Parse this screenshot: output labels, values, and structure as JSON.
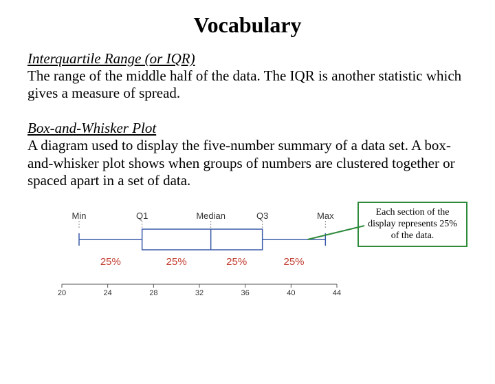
{
  "title": "Vocabulary",
  "term1": "Interquartile Range (or IQR)",
  "def1": "The range of the middle half of the data.  The IQR is another statistic which gives a measure of spread.",
  "term2": "Box-and-Whisker Plot",
  "def2": "A diagram used to display the five-number summary of a data set. A box-and-whisker plot shows when groups of numbers are clustered together or spaced apart in a set of data.",
  "callout": "Each section of the display represents 25% of the data.",
  "boxplot": {
    "axis_min": 20,
    "axis_max": 44,
    "ticks": [
      20,
      24,
      28,
      32,
      36,
      40,
      44
    ],
    "min": 21.5,
    "q1": 27,
    "median": 33,
    "q3": 37.5,
    "max": 43,
    "labels": {
      "min": "Min",
      "q1": "Q1",
      "median": "Median",
      "q3": "Q3",
      "max": "Max"
    },
    "percent_labels": [
      "25%",
      "25%",
      "25%",
      "25%"
    ],
    "percent_color": "#c0392b",
    "line_color": "#3a5aa8",
    "axis_color": "#555555",
    "callout_border": "#2f8a3a",
    "callout_line": "#2f8a3a"
  }
}
